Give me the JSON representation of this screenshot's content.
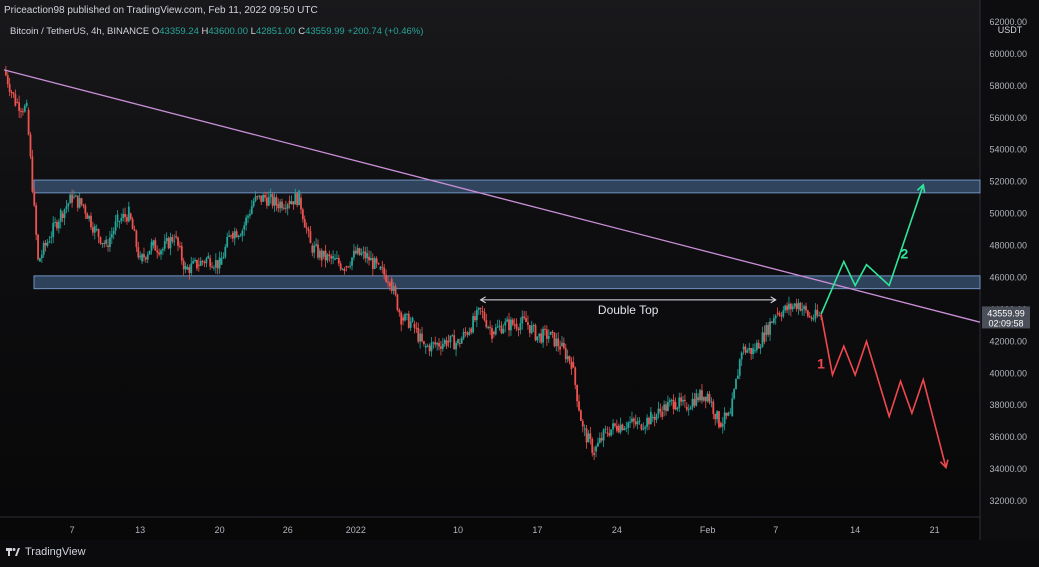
{
  "header": {
    "published": "Priceaction98 published on TradingView.com, Feb 11, 2022 09:50 UTC",
    "symbol": "Bitcoin / TetherUS, 4h, BINANCE",
    "ohlc": [
      {
        "k": "O",
        "v": "43359.24"
      },
      {
        "k": "H",
        "v": "43600.00"
      },
      {
        "k": "L",
        "v": "42851.00"
      },
      {
        "k": "C",
        "v": "43559.99"
      }
    ],
    "change": "+200.74 (+0.46%)"
  },
  "colors": {
    "up": "#26a69a",
    "down": "#ef5350",
    "trendline": "#c98fd6",
    "zone": "#4a6f9c",
    "bull_path": "#2ee69a",
    "bear_path": "#f0484e"
  },
  "chart_data": {
    "type": "candlestick",
    "currency": "USDT",
    "ylim": [
      31000,
      62500
    ],
    "y_ticks": [
      32000,
      34000,
      36000,
      38000,
      40000,
      42000,
      44000,
      46000,
      48000,
      50000,
      52000,
      54000,
      56000,
      58000,
      60000,
      62000
    ],
    "y_tick_labels": [
      "32000.00",
      "34000.00",
      "36000.00",
      "38000.00",
      "40000.00",
      "42000.00",
      "44000.00",
      "46000.00",
      "48000.00",
      "50000.00",
      "52000.00",
      "54000.00",
      "56000.00",
      "58000.00",
      "60000.00",
      "62000.00"
    ],
    "x_ticks": [
      {
        "date": "2021-12-07",
        "label": "7"
      },
      {
        "date": "2021-12-13",
        "label": "13"
      },
      {
        "date": "2021-12-20",
        "label": "20"
      },
      {
        "date": "2021-12-26",
        "label": "26"
      },
      {
        "date": "2022-01-01",
        "label": "2022"
      },
      {
        "date": "2022-01-10",
        "label": "10"
      },
      {
        "date": "2022-01-17",
        "label": "17"
      },
      {
        "date": "2022-01-24",
        "label": "24"
      },
      {
        "date": "2022-02-01",
        "label": "Feb"
      },
      {
        "date": "2022-02-07",
        "label": "7"
      },
      {
        "date": "2022-02-14",
        "label": "14"
      },
      {
        "date": "2022-02-21",
        "label": "21"
      }
    ],
    "xlim": [
      "2021-12-01",
      "2022-02-25"
    ],
    "price_path": [
      [
        "2021-12-01",
        59000
      ],
      [
        "2021-12-02",
        57000
      ],
      [
        "2021-12-03",
        56500
      ],
      [
        "2021-12-04",
        47000
      ],
      [
        "2021-12-05",
        48500
      ],
      [
        "2021-12-06",
        50000
      ],
      [
        "2021-12-07",
        51000
      ],
      [
        "2021-12-08",
        50500
      ],
      [
        "2021-12-09",
        49000
      ],
      [
        "2021-12-10",
        48000
      ],
      [
        "2021-12-11",
        49500
      ],
      [
        "2021-12-12",
        50000
      ],
      [
        "2021-12-13",
        47000
      ],
      [
        "2021-12-14",
        48000
      ],
      [
        "2021-12-15",
        47800
      ],
      [
        "2021-12-16",
        48600
      ],
      [
        "2021-12-17",
        46500
      ],
      [
        "2021-12-18",
        46800
      ],
      [
        "2021-12-19",
        47200
      ],
      [
        "2021-12-20",
        46800
      ],
      [
        "2021-12-21",
        48800
      ],
      [
        "2021-12-22",
        49000
      ],
      [
        "2021-12-23",
        50800
      ],
      [
        "2021-12-24",
        51000
      ],
      [
        "2021-12-25",
        50600
      ],
      [
        "2021-12-26",
        50800
      ],
      [
        "2021-12-27",
        51000
      ],
      [
        "2021-12-28",
        48000
      ],
      [
        "2021-12-29",
        47300
      ],
      [
        "2021-12-30",
        47100
      ],
      [
        "2021-12-31",
        46700
      ],
      [
        "2022-01-01",
        47500
      ],
      [
        "2022-01-02",
        47300
      ],
      [
        "2022-01-03",
        46500
      ],
      [
        "2022-01-04",
        45900
      ],
      [
        "2022-01-05",
        43500
      ],
      [
        "2022-01-06",
        43100
      ],
      [
        "2022-01-07",
        41600
      ],
      [
        "2022-01-08",
        41800
      ],
      [
        "2022-01-09",
        42000
      ],
      [
        "2022-01-10",
        41900
      ],
      [
        "2022-01-11",
        42800
      ],
      [
        "2022-01-12",
        43900
      ],
      [
        "2022-01-13",
        42600
      ],
      [
        "2022-01-14",
        43000
      ],
      [
        "2022-01-15",
        43100
      ],
      [
        "2022-01-16",
        43200
      ],
      [
        "2022-01-17",
        42300
      ],
      [
        "2022-01-18",
        42400
      ],
      [
        "2022-01-19",
        41700
      ],
      [
        "2022-01-20",
        40700
      ],
      [
        "2022-01-21",
        36500
      ],
      [
        "2022-01-22",
        35100
      ],
      [
        "2022-01-23",
        36300
      ],
      [
        "2022-01-24",
        36700
      ],
      [
        "2022-01-25",
        36900
      ],
      [
        "2022-01-26",
        36800
      ],
      [
        "2022-01-27",
        37200
      ],
      [
        "2022-01-28",
        37700
      ],
      [
        "2022-01-29",
        38200
      ],
      [
        "2022-01-30",
        37900
      ],
      [
        "2022-01-31",
        38500
      ],
      [
        "2022-02-01",
        38700
      ],
      [
        "2022-02-02",
        36900
      ],
      [
        "2022-02-03",
        37300
      ],
      [
        "2022-02-04",
        41500
      ],
      [
        "2022-02-05",
        41400
      ],
      [
        "2022-02-06",
        42400
      ],
      [
        "2022-02-07",
        43800
      ],
      [
        "2022-02-08",
        44000
      ],
      [
        "2022-02-09",
        44400
      ],
      [
        "2022-02-10",
        43500
      ],
      [
        "2022-02-11",
        43560
      ]
    ],
    "current_price_label": "43559.99",
    "countdown_label": "02:09:58",
    "annotations": {
      "double_top": "Double Top",
      "scenario_up": "2",
      "scenario_down": "1"
    },
    "zones": [
      {
        "from": 51300,
        "to": 52100
      },
      {
        "from": 45300,
        "to": 46100
      }
    ],
    "trendline": {
      "from": [
        "2021-12-01",
        59000
      ],
      "to": [
        "2022-02-25",
        43200
      ]
    },
    "double_top_span": {
      "from": [
        "2022-01-12",
        44600
      ],
      "to": [
        "2022-02-07",
        44600
      ]
    },
    "bull_path": [
      [
        "2022-02-11",
        43700
      ],
      [
        "2022-02-13",
        47000
      ],
      [
        "2022-02-14",
        45500
      ],
      [
        "2022-02-15",
        46800
      ],
      [
        "2022-02-17",
        45500
      ],
      [
        "2022-02-20",
        51800
      ]
    ],
    "bear_path": [
      [
        "2022-02-11",
        43700
      ],
      [
        "2022-02-12",
        39900
      ],
      [
        "2022-02-13",
        41700
      ],
      [
        "2022-02-14",
        39900
      ],
      [
        "2022-02-15",
        42000
      ],
      [
        "2022-02-17",
        37300
      ],
      [
        "2022-02-18",
        39500
      ],
      [
        "2022-02-19",
        37500
      ],
      [
        "2022-02-20",
        39600
      ],
      [
        "2022-02-22",
        34100
      ]
    ]
  },
  "footer": {
    "brand": "TradingView"
  }
}
